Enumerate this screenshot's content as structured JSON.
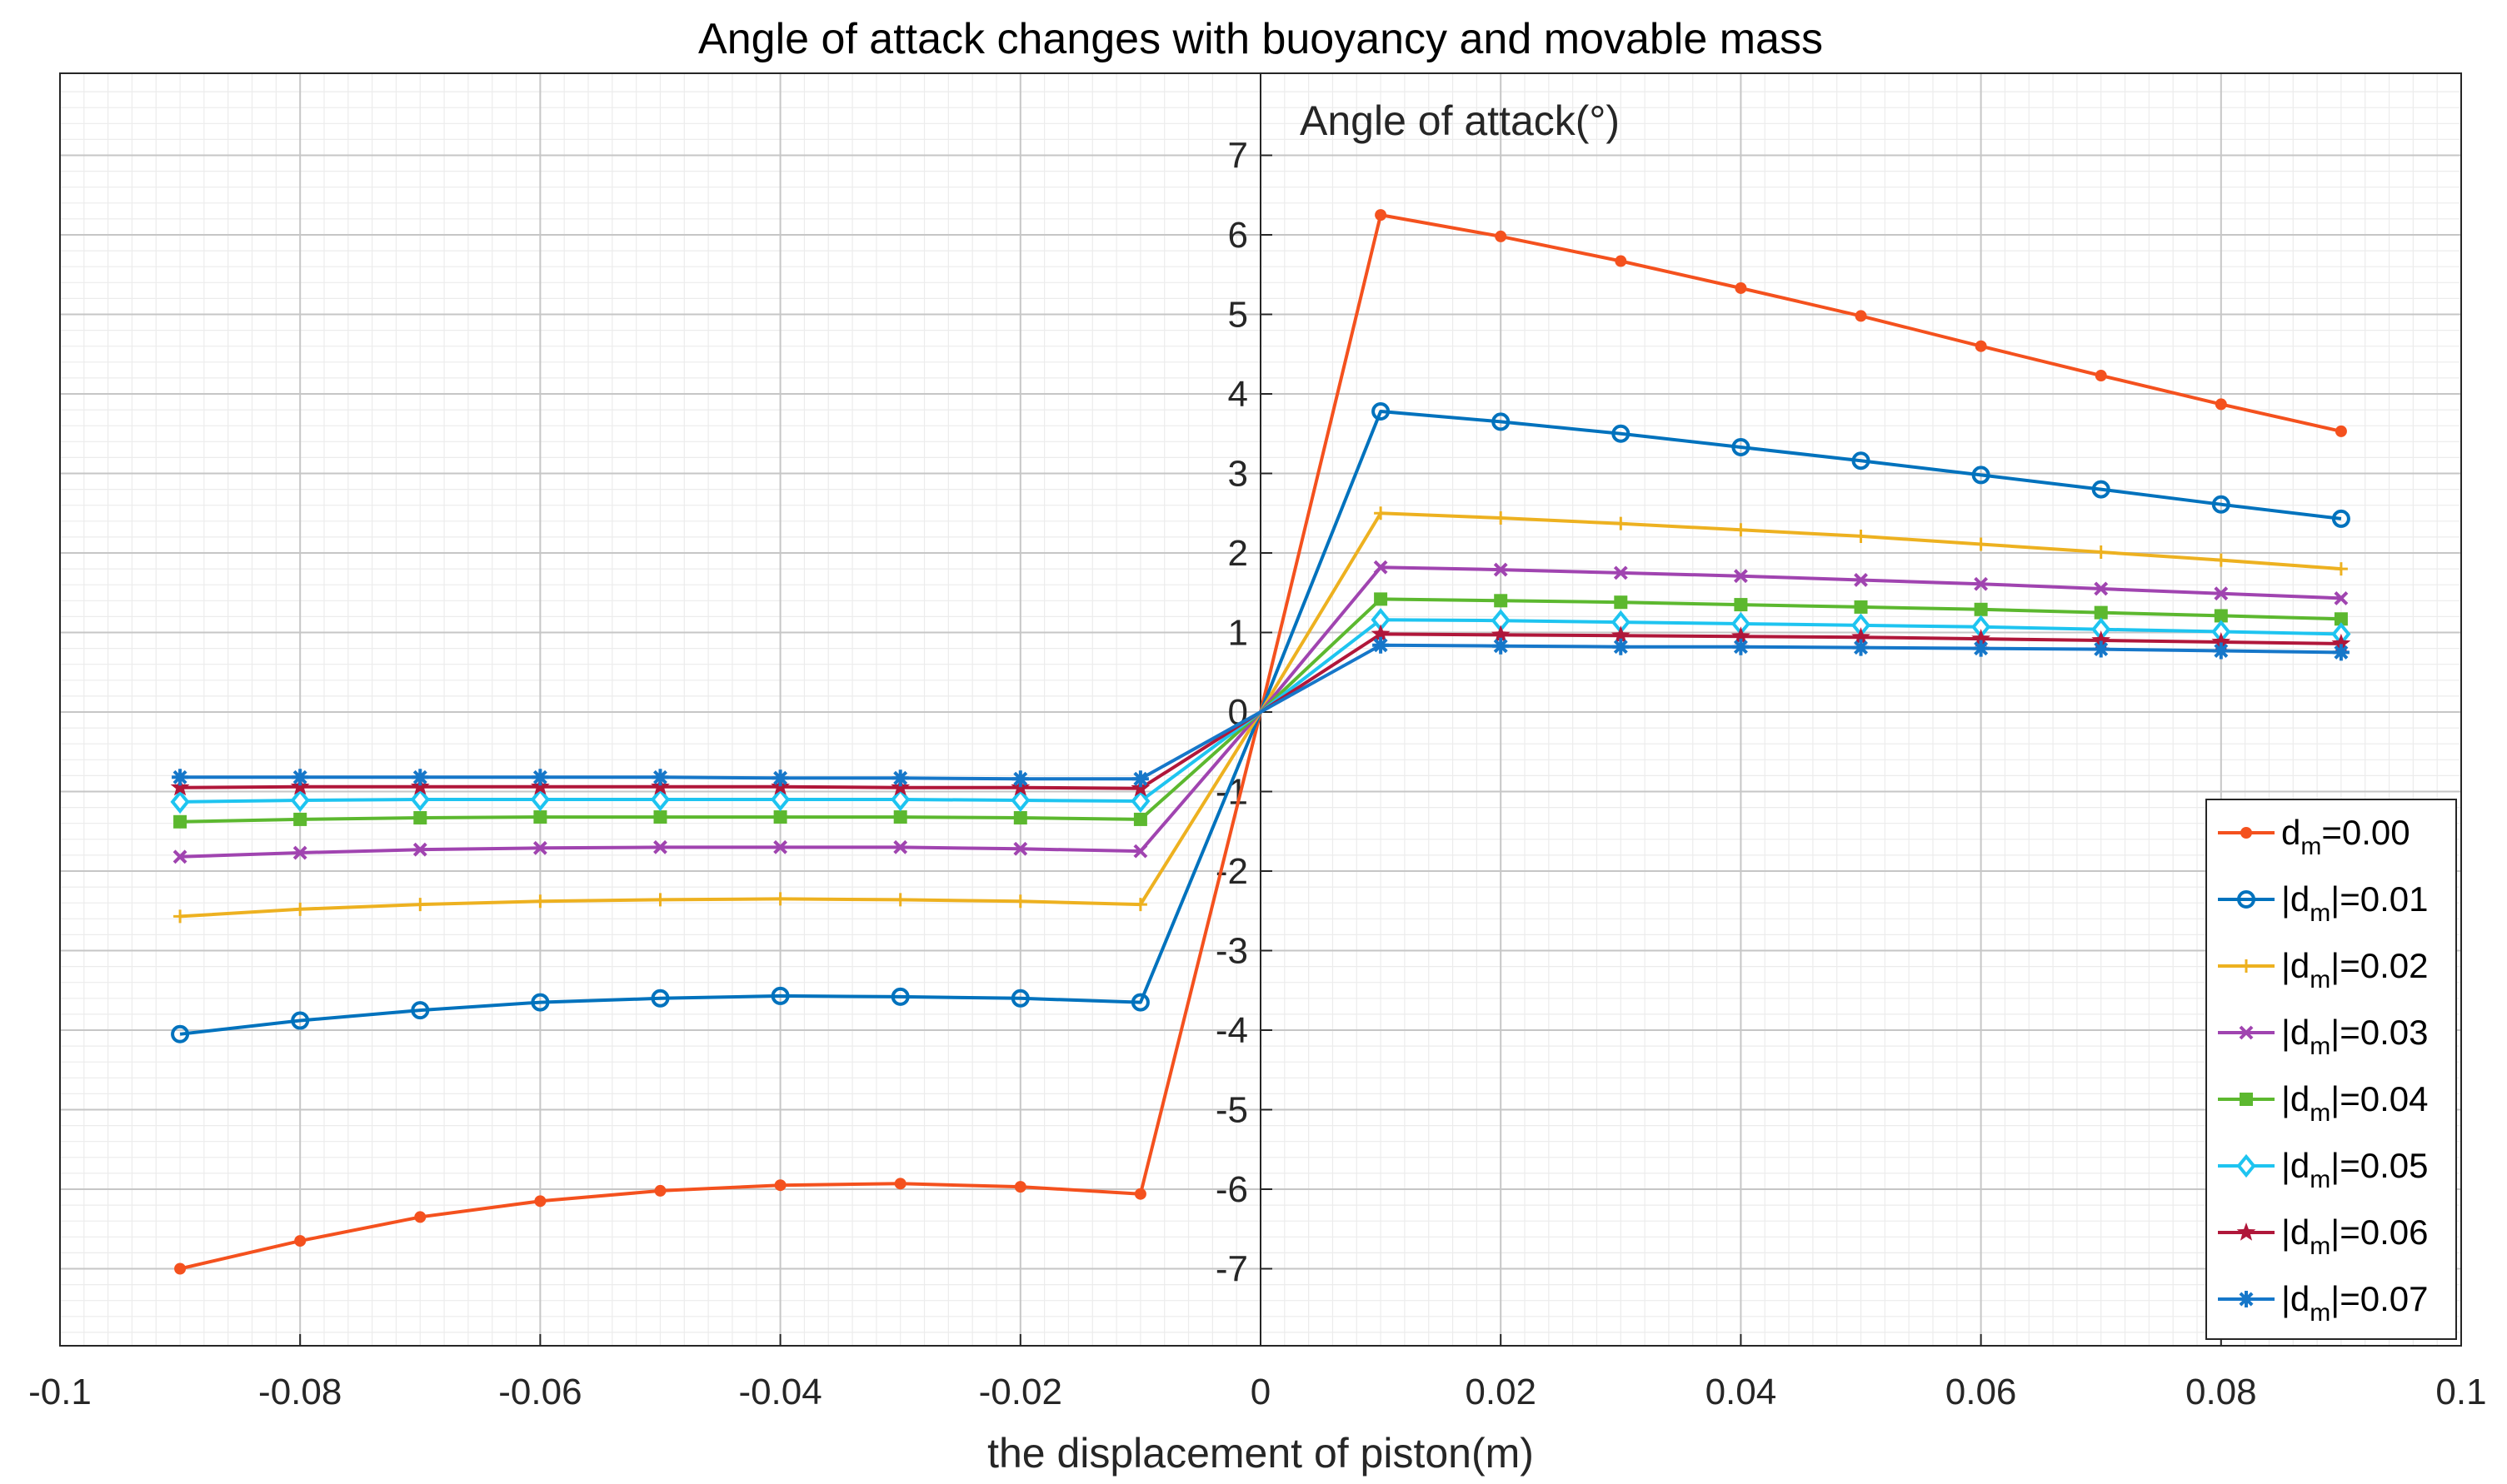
{
  "chart_data": {
    "type": "line",
    "title": "Angle of attack changes with buoyancy and movable mass",
    "xlabel": "the displacement of piston(m)",
    "ylabel": "Angle of attack(°)",
    "xlim": [
      -0.1,
      0.1
    ],
    "ylim": [
      -8,
      8
    ],
    "xticks": [
      -0.1,
      -0.08,
      -0.06,
      -0.04,
      -0.02,
      0,
      0.02,
      0.04,
      0.06,
      0.08,
      0.1
    ],
    "xtick_labels": [
      "-0.1",
      "-0.08",
      "-0.06",
      "-0.04",
      "-0.02",
      "0",
      "0.02",
      "0.04",
      "0.06",
      "0.08",
      "0.1"
    ],
    "yticks": [
      -7,
      -6,
      -5,
      -4,
      -3,
      -2,
      -1,
      0,
      1,
      2,
      3,
      4,
      5,
      6,
      7
    ],
    "ytick_labels": [
      "-7",
      "-6",
      "-5",
      "-4",
      "-3",
      "-2",
      "-1",
      "0",
      "1",
      "2",
      "3",
      "4",
      "5",
      "6",
      "7"
    ],
    "grid": true,
    "minor_grid": true,
    "legend_position": "bottom-right",
    "x": [
      -0.09,
      -0.08,
      -0.07,
      -0.06,
      -0.05,
      -0.04,
      -0.03,
      -0.02,
      -0.01,
      0,
      0.01,
      0.02,
      0.03,
      0.04,
      0.05,
      0.06,
      0.07,
      0.08,
      0.09
    ],
    "series": [
      {
        "name": "dm=0.00",
        "label_prefix": "d",
        "label_sub": "m",
        "label_suffix": "=0.00",
        "color": "#f4511e",
        "marker": "dot",
        "values": [
          -7.0,
          -6.65,
          -6.35,
          -6.15,
          -6.02,
          -5.95,
          -5.93,
          -5.97,
          -6.06,
          0,
          6.25,
          5.98,
          5.67,
          5.33,
          4.98,
          4.6,
          4.23,
          3.87,
          3.53
        ]
      },
      {
        "name": "|dm|=0.01",
        "label_prefix": "|d",
        "label_sub": "m",
        "label_suffix": "|=0.01",
        "color": "#0072bd",
        "marker": "circle",
        "values": [
          -4.05,
          -3.88,
          -3.75,
          -3.65,
          -3.6,
          -3.57,
          -3.58,
          -3.6,
          -3.65,
          0,
          3.78,
          3.65,
          3.5,
          3.33,
          3.16,
          2.98,
          2.8,
          2.61,
          2.43
        ]
      },
      {
        "name": "|dm|=0.02",
        "label_prefix": "|d",
        "label_sub": "m",
        "label_suffix": "|=0.02",
        "color": "#edb120",
        "marker": "plus",
        "values": [
          -2.57,
          -2.48,
          -2.42,
          -2.38,
          -2.36,
          -2.35,
          -2.36,
          -2.38,
          -2.42,
          0,
          2.5,
          2.44,
          2.37,
          2.29,
          2.21,
          2.11,
          2.01,
          1.91,
          1.8
        ]
      },
      {
        "name": "|dm|=0.03",
        "label_prefix": "|d",
        "label_sub": "m",
        "label_suffix": "|=0.03",
        "color": "#a044b0",
        "marker": "x",
        "values": [
          -1.82,
          -1.77,
          -1.73,
          -1.71,
          -1.7,
          -1.7,
          -1.7,
          -1.72,
          -1.75,
          0,
          1.82,
          1.79,
          1.75,
          1.71,
          1.66,
          1.61,
          1.55,
          1.49,
          1.43
        ]
      },
      {
        "name": "|dm|=0.04",
        "label_prefix": "|d",
        "label_sub": "m",
        "label_suffix": "|=0.04",
        "color": "#5cb82f",
        "marker": "square",
        "values": [
          -1.38,
          -1.35,
          -1.33,
          -1.32,
          -1.32,
          -1.32,
          -1.32,
          -1.33,
          -1.35,
          0,
          1.42,
          1.4,
          1.38,
          1.35,
          1.32,
          1.29,
          1.25,
          1.21,
          1.17
        ]
      },
      {
        "name": "|dm|=0.05",
        "label_prefix": "|d",
        "label_sub": "m",
        "label_suffix": "|=0.05",
        "color": "#1ec4f0",
        "marker": "diamond",
        "values": [
          -1.13,
          -1.11,
          -1.1,
          -1.1,
          -1.1,
          -1.1,
          -1.1,
          -1.11,
          -1.12,
          0,
          1.16,
          1.15,
          1.13,
          1.11,
          1.09,
          1.07,
          1.04,
          1.01,
          0.98
        ]
      },
      {
        "name": "|dm|=0.06",
        "label_prefix": "|d",
        "label_sub": "m",
        "label_suffix": "|=0.06",
        "color": "#b0173a",
        "marker": "star",
        "values": [
          -0.95,
          -0.94,
          -0.94,
          -0.94,
          -0.94,
          -0.94,
          -0.95,
          -0.95,
          -0.96,
          0,
          0.98,
          0.97,
          0.96,
          0.95,
          0.94,
          0.92,
          0.9,
          0.88,
          0.86
        ]
      },
      {
        "name": "|dm|=0.07",
        "label_prefix": "|d",
        "label_sub": "m",
        "label_suffix": "|=0.07",
        "color": "#1677c9",
        "marker": "asterisk",
        "values": [
          -0.82,
          -0.82,
          -0.82,
          -0.82,
          -0.82,
          -0.83,
          -0.83,
          -0.84,
          -0.84,
          0,
          0.84,
          0.83,
          0.82,
          0.82,
          0.81,
          0.8,
          0.79,
          0.77,
          0.75
        ]
      }
    ]
  }
}
